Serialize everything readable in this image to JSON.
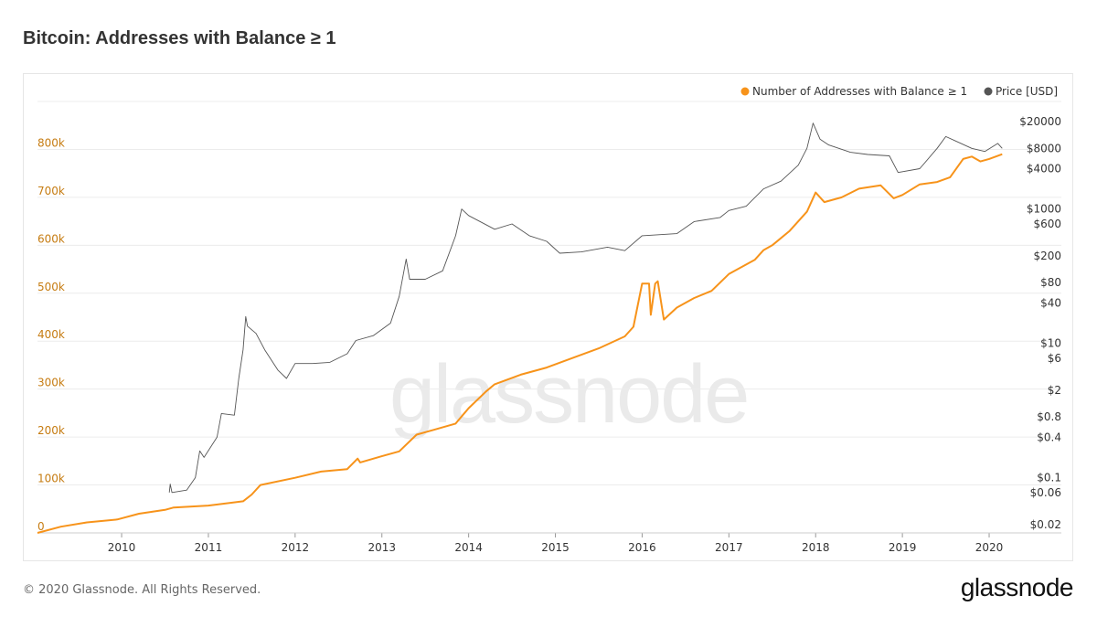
{
  "title": "Bitcoin: Addresses with Balance ≥ 1",
  "footer": "© 2020 Glassnode. All Rights Reserved.",
  "brand": "glassnode",
  "watermark": "glassnode",
  "chart_data": {
    "type": "line",
    "title": "Bitcoin: Addresses with Balance ≥ 1",
    "legend_position": "top-right",
    "grid": true,
    "x_ticks": [
      "2010",
      "2011",
      "2012",
      "2013",
      "2014",
      "2015",
      "2016",
      "2017",
      "2018",
      "2019",
      "2020"
    ],
    "xlim": [
      2009.03,
      2020.2
    ],
    "y_left": {
      "ticks": [
        0,
        100000,
        200000,
        300000,
        400000,
        500000,
        600000,
        700000,
        800000
      ],
      "tick_labels": [
        "0",
        "100k",
        "200k",
        "300k",
        "400k",
        "500k",
        "600k",
        "700k",
        "800k"
      ],
      "ylim": [
        0,
        900000
      ],
      "color": "#c67c12"
    },
    "y_right": {
      "scale": "log",
      "ticks": [
        0.02,
        0.06,
        0.1,
        0.4,
        0.8,
        2,
        6,
        10,
        40,
        80,
        200,
        600,
        1000,
        4000,
        8000,
        20000
      ],
      "tick_labels": [
        "$0.02",
        "$0.06",
        "$0.1",
        "$0.4",
        "$0.8",
        "$2",
        "$6",
        "$10",
        "$40",
        "$80",
        "$200",
        "$600",
        "$1000",
        "$4000",
        "$8000",
        "$20000"
      ],
      "ylim": [
        0.015,
        40000
      ],
      "color": "#333333"
    },
    "series": [
      {
        "name": "Number of Addresses with Balance ≥ 1",
        "axis": "left",
        "color": "#f7931a",
        "points": [
          [
            2009.03,
            0
          ],
          [
            2009.3,
            13000
          ],
          [
            2009.6,
            22000
          ],
          [
            2009.95,
            28000
          ],
          [
            2010.2,
            40000
          ],
          [
            2010.5,
            48000
          ],
          [
            2010.6,
            53000
          ],
          [
            2011.0,
            57000
          ],
          [
            2011.4,
            66000
          ],
          [
            2011.5,
            80000
          ],
          [
            2011.6,
            100000
          ],
          [
            2012.0,
            115000
          ],
          [
            2012.3,
            128000
          ],
          [
            2012.6,
            133000
          ],
          [
            2012.72,
            155000
          ],
          [
            2012.75,
            147000
          ],
          [
            2013.0,
            160000
          ],
          [
            2013.2,
            170000
          ],
          [
            2013.4,
            205000
          ],
          [
            2013.6,
            215000
          ],
          [
            2013.85,
            228000
          ],
          [
            2014.0,
            260000
          ],
          [
            2014.2,
            295000
          ],
          [
            2014.3,
            310000
          ],
          [
            2014.6,
            330000
          ],
          [
            2014.9,
            345000
          ],
          [
            2015.2,
            365000
          ],
          [
            2015.5,
            385000
          ],
          [
            2015.8,
            410000
          ],
          [
            2015.9,
            430000
          ],
          [
            2016.0,
            520000
          ],
          [
            2016.08,
            520000
          ],
          [
            2016.1,
            455000
          ],
          [
            2016.15,
            520000
          ],
          [
            2016.18,
            525000
          ],
          [
            2016.25,
            445000
          ],
          [
            2016.4,
            470000
          ],
          [
            2016.6,
            490000
          ],
          [
            2016.8,
            505000
          ],
          [
            2017.0,
            540000
          ],
          [
            2017.3,
            570000
          ],
          [
            2017.4,
            590000
          ],
          [
            2017.5,
            600000
          ],
          [
            2017.7,
            630000
          ],
          [
            2017.9,
            670000
          ],
          [
            2018.0,
            710000
          ],
          [
            2018.1,
            690000
          ],
          [
            2018.3,
            700000
          ],
          [
            2018.5,
            718000
          ],
          [
            2018.75,
            725000
          ],
          [
            2018.9,
            698000
          ],
          [
            2019.0,
            705000
          ],
          [
            2019.2,
            727000
          ],
          [
            2019.4,
            732000
          ],
          [
            2019.55,
            742000
          ],
          [
            2019.7,
            780000
          ],
          [
            2019.8,
            785000
          ],
          [
            2019.9,
            775000
          ],
          [
            2020.0,
            780000
          ],
          [
            2020.15,
            790000
          ]
        ]
      },
      {
        "name": "Price [USD]",
        "axis": "right",
        "color": "#555555",
        "points": [
          [
            2010.55,
            0.06
          ],
          [
            2010.56,
            0.08
          ],
          [
            2010.58,
            0.06
          ],
          [
            2010.75,
            0.065
          ],
          [
            2010.85,
            0.1
          ],
          [
            2010.9,
            0.25
          ],
          [
            2010.95,
            0.2
          ],
          [
            2011.1,
            0.4
          ],
          [
            2011.15,
            0.9
          ],
          [
            2011.3,
            0.85
          ],
          [
            2011.35,
            3
          ],
          [
            2011.4,
            8
          ],
          [
            2011.43,
            25
          ],
          [
            2011.45,
            18
          ],
          [
            2011.55,
            14
          ],
          [
            2011.65,
            8
          ],
          [
            2011.8,
            4
          ],
          [
            2011.9,
            3
          ],
          [
            2012.0,
            5
          ],
          [
            2012.2,
            5
          ],
          [
            2012.4,
            5.2
          ],
          [
            2012.6,
            7
          ],
          [
            2012.7,
            11
          ],
          [
            2012.9,
            13
          ],
          [
            2013.1,
            20
          ],
          [
            2013.2,
            50
          ],
          [
            2013.28,
            180
          ],
          [
            2013.32,
            90
          ],
          [
            2013.5,
            90
          ],
          [
            2013.7,
            120
          ],
          [
            2013.85,
            400
          ],
          [
            2013.92,
            1000
          ],
          [
            2014.0,
            800
          ],
          [
            2014.3,
            500
          ],
          [
            2014.5,
            600
          ],
          [
            2014.7,
            400
          ],
          [
            2014.9,
            330
          ],
          [
            2015.05,
            220
          ],
          [
            2015.3,
            230
          ],
          [
            2015.6,
            270
          ],
          [
            2015.8,
            240
          ],
          [
            2016.0,
            400
          ],
          [
            2016.4,
            430
          ],
          [
            2016.6,
            650
          ],
          [
            2016.9,
            750
          ],
          [
            2017.0,
            950
          ],
          [
            2017.2,
            1100
          ],
          [
            2017.4,
            2000
          ],
          [
            2017.6,
            2600
          ],
          [
            2017.8,
            4500
          ],
          [
            2017.9,
            8000
          ],
          [
            2017.97,
            19000
          ],
          [
            2018.05,
            11000
          ],
          [
            2018.15,
            9000
          ],
          [
            2018.4,
            7000
          ],
          [
            2018.6,
            6500
          ],
          [
            2018.85,
            6200
          ],
          [
            2018.95,
            3500
          ],
          [
            2019.2,
            4000
          ],
          [
            2019.4,
            8000
          ],
          [
            2019.5,
            12000
          ],
          [
            2019.6,
            10500
          ],
          [
            2019.8,
            8000
          ],
          [
            2019.95,
            7200
          ],
          [
            2020.1,
            9500
          ],
          [
            2020.15,
            8000
          ]
        ]
      }
    ]
  }
}
